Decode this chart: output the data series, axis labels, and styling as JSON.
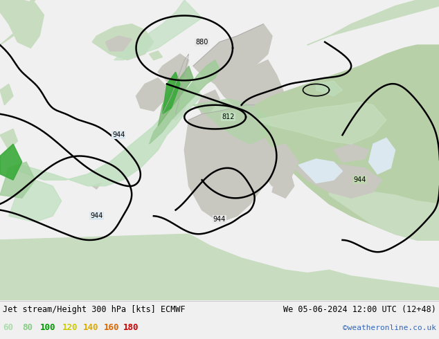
{
  "title_left": "Jet stream/Height 300 hPa [kts] ECMWF",
  "title_right": "We 05-06-2024 12:00 UTC (12+48)",
  "copyright": "©weatheronline.co.uk",
  "legend_values": [
    "60",
    "80",
    "100",
    "120",
    "140",
    "160",
    "180"
  ],
  "legend_colors": [
    "#aaddaa",
    "#88cc88",
    "#009900",
    "#cccc00",
    "#ddaa00",
    "#dd6600",
    "#cc0000"
  ],
  "figsize": [
    6.34,
    4.9
  ],
  "dpi": 100,
  "map_bg": "#e8e8e8",
  "ocean_color": "#dce8f0",
  "land_color_light": "#c8ddc8",
  "land_color_green": "#b8d4b8",
  "europe_green": "#c0d8b0",
  "gray_coast": "#999999",
  "contour_lw": 1.8
}
